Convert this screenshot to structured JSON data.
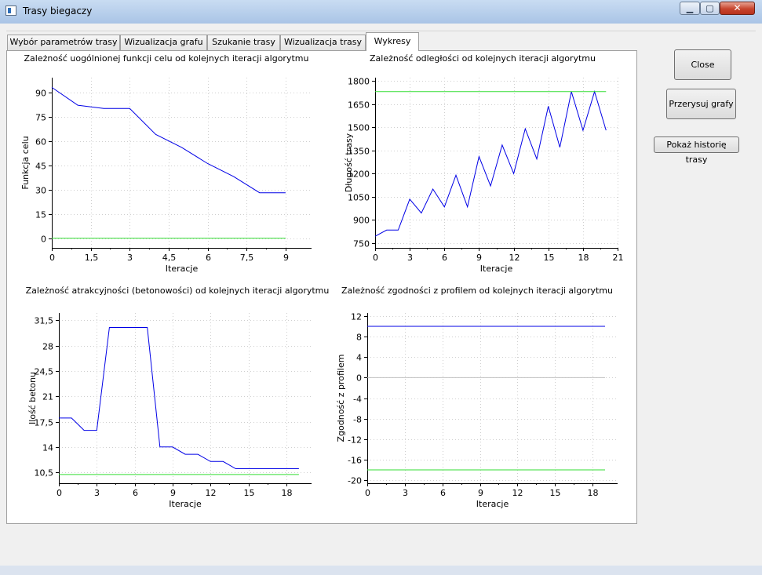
{
  "window": {
    "title": "Trasy biegaczy",
    "min_glyph": "▁",
    "max_glyph": "▢",
    "close_glyph": "✕"
  },
  "tabs": [
    {
      "label": "Wybór parametrów trasy"
    },
    {
      "label": "Wizualizacja grafu"
    },
    {
      "label": "Szukanie trasy"
    },
    {
      "label": "Wizualizacja trasy"
    },
    {
      "label": "Wykresy"
    }
  ],
  "active_tab": 4,
  "buttons": {
    "close": "Close",
    "redraw": "Przerysuj grafy",
    "history": "Pokaż historię trasy"
  },
  "colors": {
    "series": "#0000e6",
    "reference": "#33dd33",
    "zero": "#c0c0c0"
  },
  "chart_data": [
    {
      "type": "line",
      "title": "Zależność uogólnionej funkcji celu od kolejnych iteracji algorytmu",
      "xlabel": "Iteracje",
      "ylabel": "Funkcja celu",
      "xlim": [
        0,
        10
      ],
      "ylim": [
        -6,
        99
      ],
      "xticks": [
        "0",
        "1,5",
        "3",
        "4,5",
        "6",
        "7,5",
        "9"
      ],
      "yticks": [
        "0",
        "15",
        "30",
        "45",
        "60",
        "75",
        "90"
      ],
      "grid": true,
      "series": [
        {
          "x": [
            0,
            1,
            2,
            3,
            4,
            5,
            6,
            7,
            8,
            9
          ],
          "y": [
            93,
            82,
            80,
            80,
            64,
            56,
            46,
            38,
            28,
            28
          ]
        },
        {
          "x": [
            0,
            9
          ],
          "y": [
            0,
            0
          ]
        }
      ]
    },
    {
      "type": "line",
      "title": "Zależność odległości od kolejnych iteracji algorytmu",
      "xlabel": "Iteracje",
      "ylabel": "Długość trasy",
      "xlim": [
        0,
        21
      ],
      "ylim": [
        720,
        1820
      ],
      "xticks": [
        "0",
        "3",
        "6",
        "9",
        "12",
        "15",
        "18",
        "21"
      ],
      "yticks": [
        "750",
        "900",
        "1050",
        "1200",
        "1350",
        "1500",
        "1650",
        "1800"
      ],
      "grid": true,
      "series": [
        {
          "x": [
            0,
            1,
            2,
            3,
            4,
            5,
            6,
            7,
            8,
            9,
            10,
            11,
            12,
            13,
            14,
            15,
            16,
            17,
            18,
            19,
            20
          ],
          "y": [
            795,
            835,
            835,
            1035,
            945,
            1100,
            985,
            1190,
            985,
            1310,
            1120,
            1385,
            1200,
            1490,
            1295,
            1635,
            1370,
            1730,
            1480,
            1730,
            1480
          ]
        },
        {
          "x": [
            0,
            20
          ],
          "y": [
            1730,
            1730
          ]
        }
      ]
    },
    {
      "type": "line",
      "title": "Zależność atrakcyjności (betonowości) od kolejnych iteracji algorytmu",
      "xlabel": "Iteracje",
      "ylabel": "Ilość betonu",
      "xlim": [
        0,
        20
      ],
      "ylim": [
        9,
        32.5
      ],
      "xticks": [
        "0",
        "3",
        "6",
        "9",
        "12",
        "15",
        "18"
      ],
      "yticks": [
        "10,5",
        "14",
        "17,5",
        "21",
        "24,5",
        "28",
        "31,5"
      ],
      "grid": true,
      "series": [
        {
          "x": [
            0,
            1,
            2,
            3,
            4,
            5,
            6,
            7,
            8,
            9,
            10,
            11,
            12,
            13,
            14,
            15,
            16,
            17,
            18,
            19
          ],
          "y": [
            18,
            18,
            16.3,
            16.3,
            30.5,
            30.5,
            30.5,
            30.5,
            14,
            14,
            13,
            13,
            12,
            12,
            11,
            11,
            11,
            11,
            11,
            11
          ]
        },
        {
          "x": [
            0,
            19
          ],
          "y": [
            10.2,
            10.2
          ]
        }
      ]
    },
    {
      "type": "line",
      "title": "Zależność zgodności z profilem od kolejnych iteracji algorytmu",
      "xlabel": "Iteracje",
      "ylabel": "Zgodność z profilem",
      "xlim": [
        0,
        20
      ],
      "ylim": [
        -20.6,
        12.6
      ],
      "xticks": [
        "0",
        "3",
        "6",
        "9",
        "12",
        "15",
        "18"
      ],
      "yticks": [
        "-20",
        "-16",
        "-12",
        "-8",
        "-4",
        "0",
        "4",
        "8",
        "12"
      ],
      "grid": true,
      "series": [
        {
          "x": [
            0,
            19
          ],
          "y": [
            10,
            10
          ]
        },
        {
          "x": [
            0,
            19
          ],
          "y": [
            -18,
            -18
          ]
        },
        {
          "x": [
            0,
            19
          ],
          "y": [
            0,
            0
          ]
        }
      ]
    }
  ]
}
